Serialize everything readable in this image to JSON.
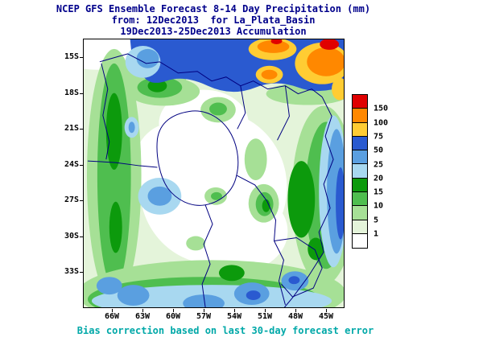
{
  "title": {
    "line1": "NCEP GFS Ensemble Forecast 8-14 Day Precipitation (mm)",
    "line2": "from: 12Dec2013  for La_Plata_Basin",
    "line3": "19Dec2013-25Dec2013 Accumulation"
  },
  "caption": "Bias correction based on last 30-day forecast error",
  "axes": {
    "lat_labels": [
      "15S",
      "18S",
      "21S",
      "24S",
      "27S",
      "30S",
      "33S"
    ],
    "lon_labels": [
      "66W",
      "63W",
      "60W",
      "57W",
      "54W",
      "51W",
      "48W",
      "45W"
    ]
  },
  "legend": {
    "boundaries": [
      "150",
      "100",
      "75",
      "50",
      "25",
      "20",
      "15",
      "10",
      "5",
      "1"
    ],
    "cell_colors": [
      "#e00000",
      "#ff8800",
      "#ffcc33",
      "#2a5ad0",
      "#5a9fe0",
      "#a8d8f0",
      "#0c9a0c",
      "#4fbe4f",
      "#a6e096",
      "#e4f4da",
      "#ffffff"
    ]
  },
  "chart_data": {
    "type": "filled_contour_map",
    "variable": "8-14 Day Accumulated Precipitation",
    "units": "mm",
    "region_label": "La_Plata_Basin",
    "init_date": "12Dec2013",
    "valid_period": "19Dec2013-25Dec2013",
    "contour_levels": [
      1,
      5,
      10,
      15,
      20,
      25,
      50,
      75,
      100,
      150
    ],
    "lat_ticks": [
      "15S",
      "18S",
      "21S",
      "24S",
      "27S",
      "30S",
      "33S"
    ],
    "lon_ticks": [
      "66W",
      "63W",
      "60W",
      "57W",
      "54W",
      "51W",
      "48W",
      "45W"
    ],
    "palette_note": "white <1, greens 1-25, blues 20-75, gold 75-100, orange 100-150, red >150",
    "border_color": "#000080",
    "title_color": "#00008b",
    "caption_color": "#00a8a8"
  }
}
